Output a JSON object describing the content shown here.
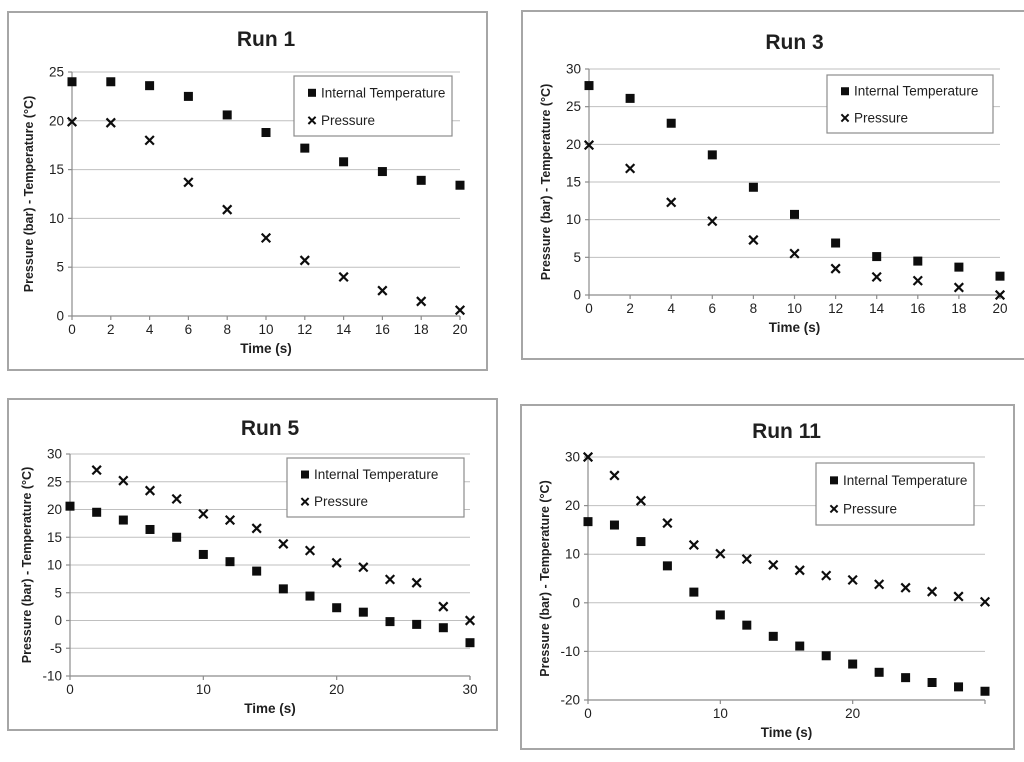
{
  "page": {
    "description": "Four Excel-style scatter charts comparing internal temperature and pressure over time for experimental runs",
    "background": "#ffffff"
  },
  "styles": {
    "marker_color": "#0d0d0d",
    "text_color": "#1f1f1f",
    "grid_color": "#bfbfbf",
    "axis_color": "#8c8c8c",
    "panel_border_color": "#a6a6a6",
    "legend_border_color": "#8c8c8c",
    "legend_background": "#ffffff"
  },
  "legend": {
    "items": [
      {
        "label": "Internal Temperature",
        "marker": "filled-square"
      },
      {
        "label": "Pressure",
        "marker": "x-cross"
      }
    ]
  },
  "chart_data": [
    {
      "id": "run-1",
      "type": "scatter",
      "title": "Run 1",
      "xlabel": "Time (s)",
      "ylabel": "Pressure (bar) - Temperature (°C)",
      "xlim": [
        0,
        20
      ],
      "ylim": [
        0,
        25
      ],
      "xticks": [
        0,
        2,
        4,
        6,
        8,
        10,
        12,
        14,
        16,
        18,
        20
      ],
      "yticks": [
        0,
        5,
        10,
        15,
        20,
        25
      ],
      "grid": "horizontal",
      "legend_position": "top-right",
      "series": [
        {
          "name": "Internal Temperature",
          "marker": "filled-square",
          "x": [
            0,
            2,
            4,
            6,
            8,
            10,
            12,
            14,
            16,
            18,
            20
          ],
          "y": [
            24.0,
            24.0,
            23.6,
            22.5,
            20.6,
            18.8,
            17.2,
            15.8,
            14.8,
            13.9,
            13.4
          ]
        },
        {
          "name": "Pressure",
          "marker": "x-cross",
          "x": [
            0,
            2,
            4,
            6,
            8,
            10,
            12,
            14,
            16,
            18,
            20
          ],
          "y": [
            19.9,
            19.8,
            18.0,
            13.7,
            10.9,
            8.0,
            5.7,
            4.0,
            2.6,
            1.5,
            0.6
          ]
        }
      ]
    },
    {
      "id": "run-3",
      "type": "scatter",
      "title": "Run 3",
      "xlabel": "Time (s)",
      "ylabel": "Pressure (bar) - Temperature (°C)",
      "xlim": [
        0,
        20
      ],
      "ylim": [
        0,
        30
      ],
      "xticks": [
        0,
        2,
        4,
        6,
        8,
        10,
        12,
        14,
        16,
        18,
        20
      ],
      "yticks": [
        0,
        5,
        10,
        15,
        20,
        25,
        30
      ],
      "grid": "horizontal",
      "legend_position": "top-right",
      "series": [
        {
          "name": "Internal Temperature",
          "marker": "filled-square",
          "x": [
            0,
            2,
            4,
            6,
            8,
            10,
            12,
            14,
            16,
            18,
            20
          ],
          "y": [
            27.8,
            26.1,
            22.8,
            18.6,
            14.3,
            10.7,
            6.9,
            5.1,
            4.5,
            3.7,
            2.5
          ]
        },
        {
          "name": "Pressure",
          "marker": "x-cross",
          "x": [
            0,
            2,
            4,
            6,
            8,
            10,
            12,
            14,
            16,
            18,
            20
          ],
          "y": [
            19.9,
            16.8,
            12.3,
            9.8,
            7.3,
            5.5,
            3.5,
            2.4,
            1.9,
            1.0,
            0.0
          ]
        }
      ]
    },
    {
      "id": "run-5",
      "type": "scatter",
      "title": "Run 5",
      "xlabel": "Time (s)",
      "ylabel": "Pressure (bar) - Temperature (°C)",
      "xlim": [
        0,
        30
      ],
      "ylim": [
        -10,
        30
      ],
      "xticks": [
        0,
        10,
        20,
        30
      ],
      "yticks": [
        -10,
        -5,
        0,
        5,
        10,
        15,
        20,
        25,
        30
      ],
      "grid": "horizontal",
      "legend_position": "top-right",
      "series": [
        {
          "name": "Internal Temperature",
          "marker": "filled-square",
          "x": [
            0,
            2,
            4,
            6,
            8,
            10,
            12,
            14,
            16,
            18,
            20,
            22,
            24,
            26,
            28,
            30
          ],
          "y": [
            20.6,
            19.5,
            18.1,
            16.4,
            15.0,
            11.9,
            10.6,
            8.9,
            5.7,
            4.4,
            2.3,
            1.5,
            -0.2,
            -0.7,
            -1.3,
            -4.0
          ]
        },
        {
          "name": "Pressure",
          "marker": "x-cross",
          "x": [
            2,
            4,
            6,
            8,
            10,
            12,
            14,
            16,
            18,
            20,
            22,
            24,
            26,
            28,
            30
          ],
          "y": [
            27.1,
            25.2,
            23.4,
            21.9,
            19.2,
            18.1,
            16.6,
            13.8,
            12.6,
            10.4,
            9.6,
            7.4,
            6.8,
            2.5,
            0.0
          ]
        }
      ]
    },
    {
      "id": "run-11",
      "type": "scatter",
      "title": "Run 11",
      "xlabel": "Time (s)",
      "ylabel": "Pressure (bar) - Temperature (°C)",
      "xlim": [
        0,
        30
      ],
      "ylim": [
        -20,
        30
      ],
      "xticks": [
        0,
        10,
        20
      ],
      "yticks": [
        -20,
        -10,
        0,
        10,
        20,
        30
      ],
      "grid": "horizontal",
      "legend_position": "top-right",
      "series": [
        {
          "name": "Internal Temperature",
          "marker": "filled-square",
          "x": [
            0,
            2,
            4,
            6,
            8,
            10,
            12,
            14,
            16,
            18,
            20,
            22,
            24,
            26,
            28,
            30
          ],
          "y": [
            16.7,
            16.0,
            12.6,
            7.6,
            2.2,
            -2.5,
            -4.6,
            -6.9,
            -8.9,
            -10.9,
            -12.6,
            -14.3,
            -15.4,
            -16.4,
            -17.3,
            -18.2
          ]
        },
        {
          "name": "Pressure",
          "marker": "x-cross",
          "x": [
            0,
            2,
            4,
            6,
            8,
            10,
            12,
            14,
            16,
            18,
            20,
            22,
            24,
            26,
            28,
            30
          ],
          "y": [
            30.0,
            26.2,
            21.0,
            16.4,
            11.9,
            10.1,
            9.0,
            7.8,
            6.7,
            5.6,
            4.7,
            3.8,
            3.1,
            2.3,
            1.3,
            0.2
          ]
        }
      ]
    }
  ]
}
